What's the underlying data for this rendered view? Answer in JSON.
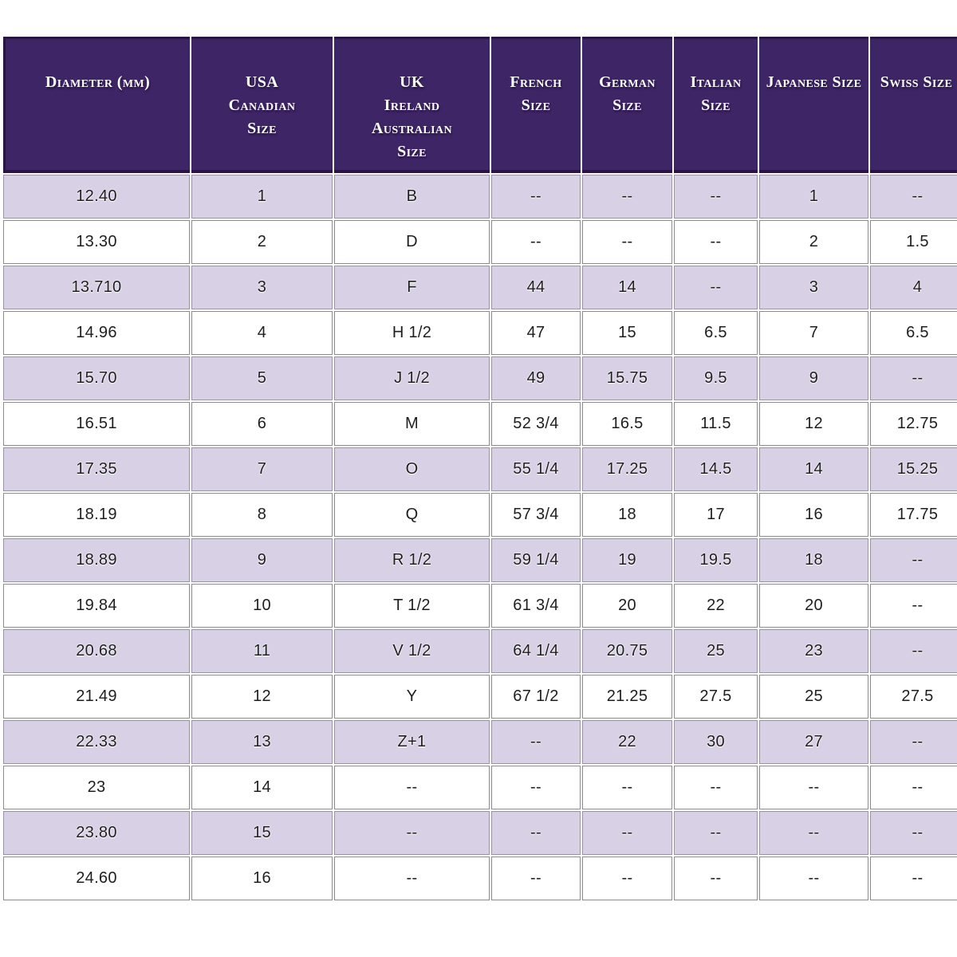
{
  "colors": {
    "header_bg": "#3e2566",
    "header_outline": "#2a1445",
    "header_text": "#ffffff",
    "row_alt_bg": "#d8d0e5",
    "row_white_bg": "#ffffff",
    "cell_border": "#8c8c8c",
    "body_text": "#1e1e1e"
  },
  "chart_data": {
    "type": "table",
    "columns": [
      {
        "id": "diameter",
        "label_lines": [
          "Diameter (mm)"
        ]
      },
      {
        "id": "usa-canadian",
        "label_lines": [
          "USA",
          "Canadian",
          "Size"
        ]
      },
      {
        "id": "uk-ireland-australian",
        "label_lines": [
          "UK",
          "Ireland",
          "Australian",
          "Size"
        ]
      },
      {
        "id": "french",
        "label_lines": [
          "French",
          "Size"
        ]
      },
      {
        "id": "german",
        "label_lines": [
          "German",
          "Size"
        ]
      },
      {
        "id": "italian",
        "label_lines": [
          "Italian",
          "Size"
        ]
      },
      {
        "id": "japanese",
        "label_lines": [
          "Japanese Size"
        ]
      },
      {
        "id": "swiss",
        "label_lines": [
          "Swiss Size"
        ]
      }
    ],
    "rows": [
      [
        "12.40",
        "1",
        "B",
        "--",
        "--",
        "--",
        "1",
        "--"
      ],
      [
        "13.30",
        "2",
        "D",
        "--",
        "--",
        "--",
        "2",
        "1.5"
      ],
      [
        "13.710",
        "3",
        "F",
        "44",
        "14",
        "--",
        "3",
        "4"
      ],
      [
        "14.96",
        "4",
        "H 1/2",
        "47",
        "15",
        "6.5",
        "7",
        "6.5"
      ],
      [
        "15.70",
        "5",
        "J 1/2",
        "49",
        "15.75",
        "9.5",
        "9",
        "--"
      ],
      [
        "16.51",
        "6",
        "M",
        "52 3/4",
        "16.5",
        "11.5",
        "12",
        "12.75"
      ],
      [
        "17.35",
        "7",
        "O",
        "55 1/4",
        "17.25",
        "14.5",
        "14",
        "15.25"
      ],
      [
        "18.19",
        "8",
        "Q",
        "57 3/4",
        "18",
        "17",
        "16",
        "17.75"
      ],
      [
        "18.89",
        "9",
        "R 1/2",
        "59 1/4",
        "19",
        "19.5",
        "18",
        "--"
      ],
      [
        "19.84",
        "10",
        "T 1/2",
        "61 3/4",
        "20",
        "22",
        "20",
        "--"
      ],
      [
        "20.68",
        "11",
        "V 1/2",
        "64 1/4",
        "20.75",
        "25",
        "23",
        "--"
      ],
      [
        "21.49",
        "12",
        "Y",
        "67 1/2",
        "21.25",
        "27.5",
        "25",
        "27.5"
      ],
      [
        "22.33",
        "13",
        "Z+1",
        "--",
        "22",
        "30",
        "27",
        "--"
      ],
      [
        "23",
        "14",
        "--",
        "--",
        "--",
        "--",
        "--",
        "--"
      ],
      [
        "23.80",
        "15",
        "--",
        "--",
        "--",
        "--",
        "--",
        "--"
      ],
      [
        "24.60",
        "16",
        "--",
        "--",
        "--",
        "--",
        "--",
        "--"
      ]
    ]
  }
}
